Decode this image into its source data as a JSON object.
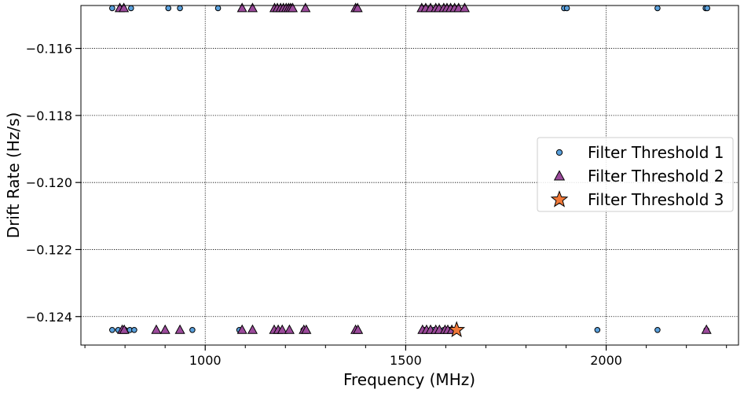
{
  "chart_data": {
    "type": "scatter",
    "xlabel": "Frequency (MHz)",
    "ylabel": "Drift Rate (Hz/s)",
    "xlim": [
      690,
      2330
    ],
    "ylim": [
      -0.12485,
      -0.11472
    ],
    "x_ticks": [
      1000,
      1500,
      2000
    ],
    "x_tick_labels": [
      "1000",
      "1500",
      "2000"
    ],
    "x_minor_step": 100,
    "y_ticks": [
      -0.124,
      -0.122,
      -0.12,
      -0.118,
      -0.116
    ],
    "y_tick_labels": [
      "−0.124",
      "−0.122",
      "−0.120",
      "−0.118",
      "−0.116"
    ],
    "grid": true,
    "legend_position": "center-right",
    "series": [
      {
        "name": "Filter Threshold 1",
        "marker": "circle",
        "color": "#5aa0dc",
        "points": [
          [
            768,
            -0.1148
          ],
          [
            815,
            -0.1148
          ],
          [
            908,
            -0.1148
          ],
          [
            937,
            -0.1148
          ],
          [
            1032,
            -0.1148
          ],
          [
            1175,
            -0.1148
          ],
          [
            1192,
            -0.1148
          ],
          [
            1205,
            -0.1148
          ],
          [
            1378,
            -0.1148
          ],
          [
            1545,
            -0.1148
          ],
          [
            1562,
            -0.1148
          ],
          [
            1580,
            -0.1148
          ],
          [
            1598,
            -0.1148
          ],
          [
            1615,
            -0.1148
          ],
          [
            1895,
            -0.1148
          ],
          [
            1902,
            -0.1148
          ],
          [
            2128,
            -0.1148
          ],
          [
            2248,
            -0.1148
          ],
          [
            2252,
            -0.1148
          ],
          [
            768,
            -0.1244
          ],
          [
            783,
            -0.1244
          ],
          [
            800,
            -0.1244
          ],
          [
            812,
            -0.1244
          ],
          [
            823,
            -0.1244
          ],
          [
            968,
            -0.1244
          ],
          [
            1085,
            -0.1244
          ],
          [
            1182,
            -0.1244
          ],
          [
            1245,
            -0.1244
          ],
          [
            1378,
            -0.1244
          ],
          [
            1545,
            -0.1244
          ],
          [
            1570,
            -0.1244
          ],
          [
            1595,
            -0.1244
          ],
          [
            1610,
            -0.1244
          ],
          [
            1978,
            -0.1244
          ],
          [
            2128,
            -0.1244
          ],
          [
            2250,
            -0.1244
          ]
        ]
      },
      {
        "name": "Filter Threshold 2",
        "marker": "triangle",
        "color": "#9b4a9b",
        "points": [
          [
            787,
            -0.1148
          ],
          [
            797,
            -0.1148
          ],
          [
            1092,
            -0.1148
          ],
          [
            1118,
            -0.1148
          ],
          [
            1173,
            -0.1148
          ],
          [
            1180,
            -0.1148
          ],
          [
            1188,
            -0.1148
          ],
          [
            1195,
            -0.1148
          ],
          [
            1202,
            -0.1148
          ],
          [
            1208,
            -0.1148
          ],
          [
            1213,
            -0.1148
          ],
          [
            1218,
            -0.1148
          ],
          [
            1250,
            -0.1148
          ],
          [
            1375,
            -0.1148
          ],
          [
            1380,
            -0.1148
          ],
          [
            1540,
            -0.1148
          ],
          [
            1550,
            -0.1148
          ],
          [
            1562,
            -0.1148
          ],
          [
            1575,
            -0.1148
          ],
          [
            1583,
            -0.1148
          ],
          [
            1595,
            -0.1148
          ],
          [
            1603,
            -0.1148
          ],
          [
            1612,
            -0.1148
          ],
          [
            1622,
            -0.1148
          ],
          [
            1632,
            -0.1148
          ],
          [
            1647,
            -0.1148
          ],
          [
            793,
            -0.1244
          ],
          [
            798,
            -0.1244
          ],
          [
            878,
            -0.1244
          ],
          [
            900,
            -0.1244
          ],
          [
            937,
            -0.1244
          ],
          [
            1092,
            -0.1244
          ],
          [
            1118,
            -0.1244
          ],
          [
            1172,
            -0.1244
          ],
          [
            1182,
            -0.1244
          ],
          [
            1192,
            -0.1244
          ],
          [
            1210,
            -0.1244
          ],
          [
            1246,
            -0.1244
          ],
          [
            1252,
            -0.1244
          ],
          [
            1375,
            -0.1244
          ],
          [
            1381,
            -0.1244
          ],
          [
            1542,
            -0.1244
          ],
          [
            1552,
            -0.1244
          ],
          [
            1562,
            -0.1244
          ],
          [
            1575,
            -0.1244
          ],
          [
            1584,
            -0.1244
          ],
          [
            1598,
            -0.1244
          ],
          [
            1605,
            -0.1244
          ],
          [
            1615,
            -0.1244
          ],
          [
            2250,
            -0.1244
          ]
        ]
      },
      {
        "name": "Filter Threshold 3",
        "marker": "star",
        "color": "#f07838",
        "points": [
          [
            1627,
            -0.1244
          ]
        ]
      }
    ]
  }
}
